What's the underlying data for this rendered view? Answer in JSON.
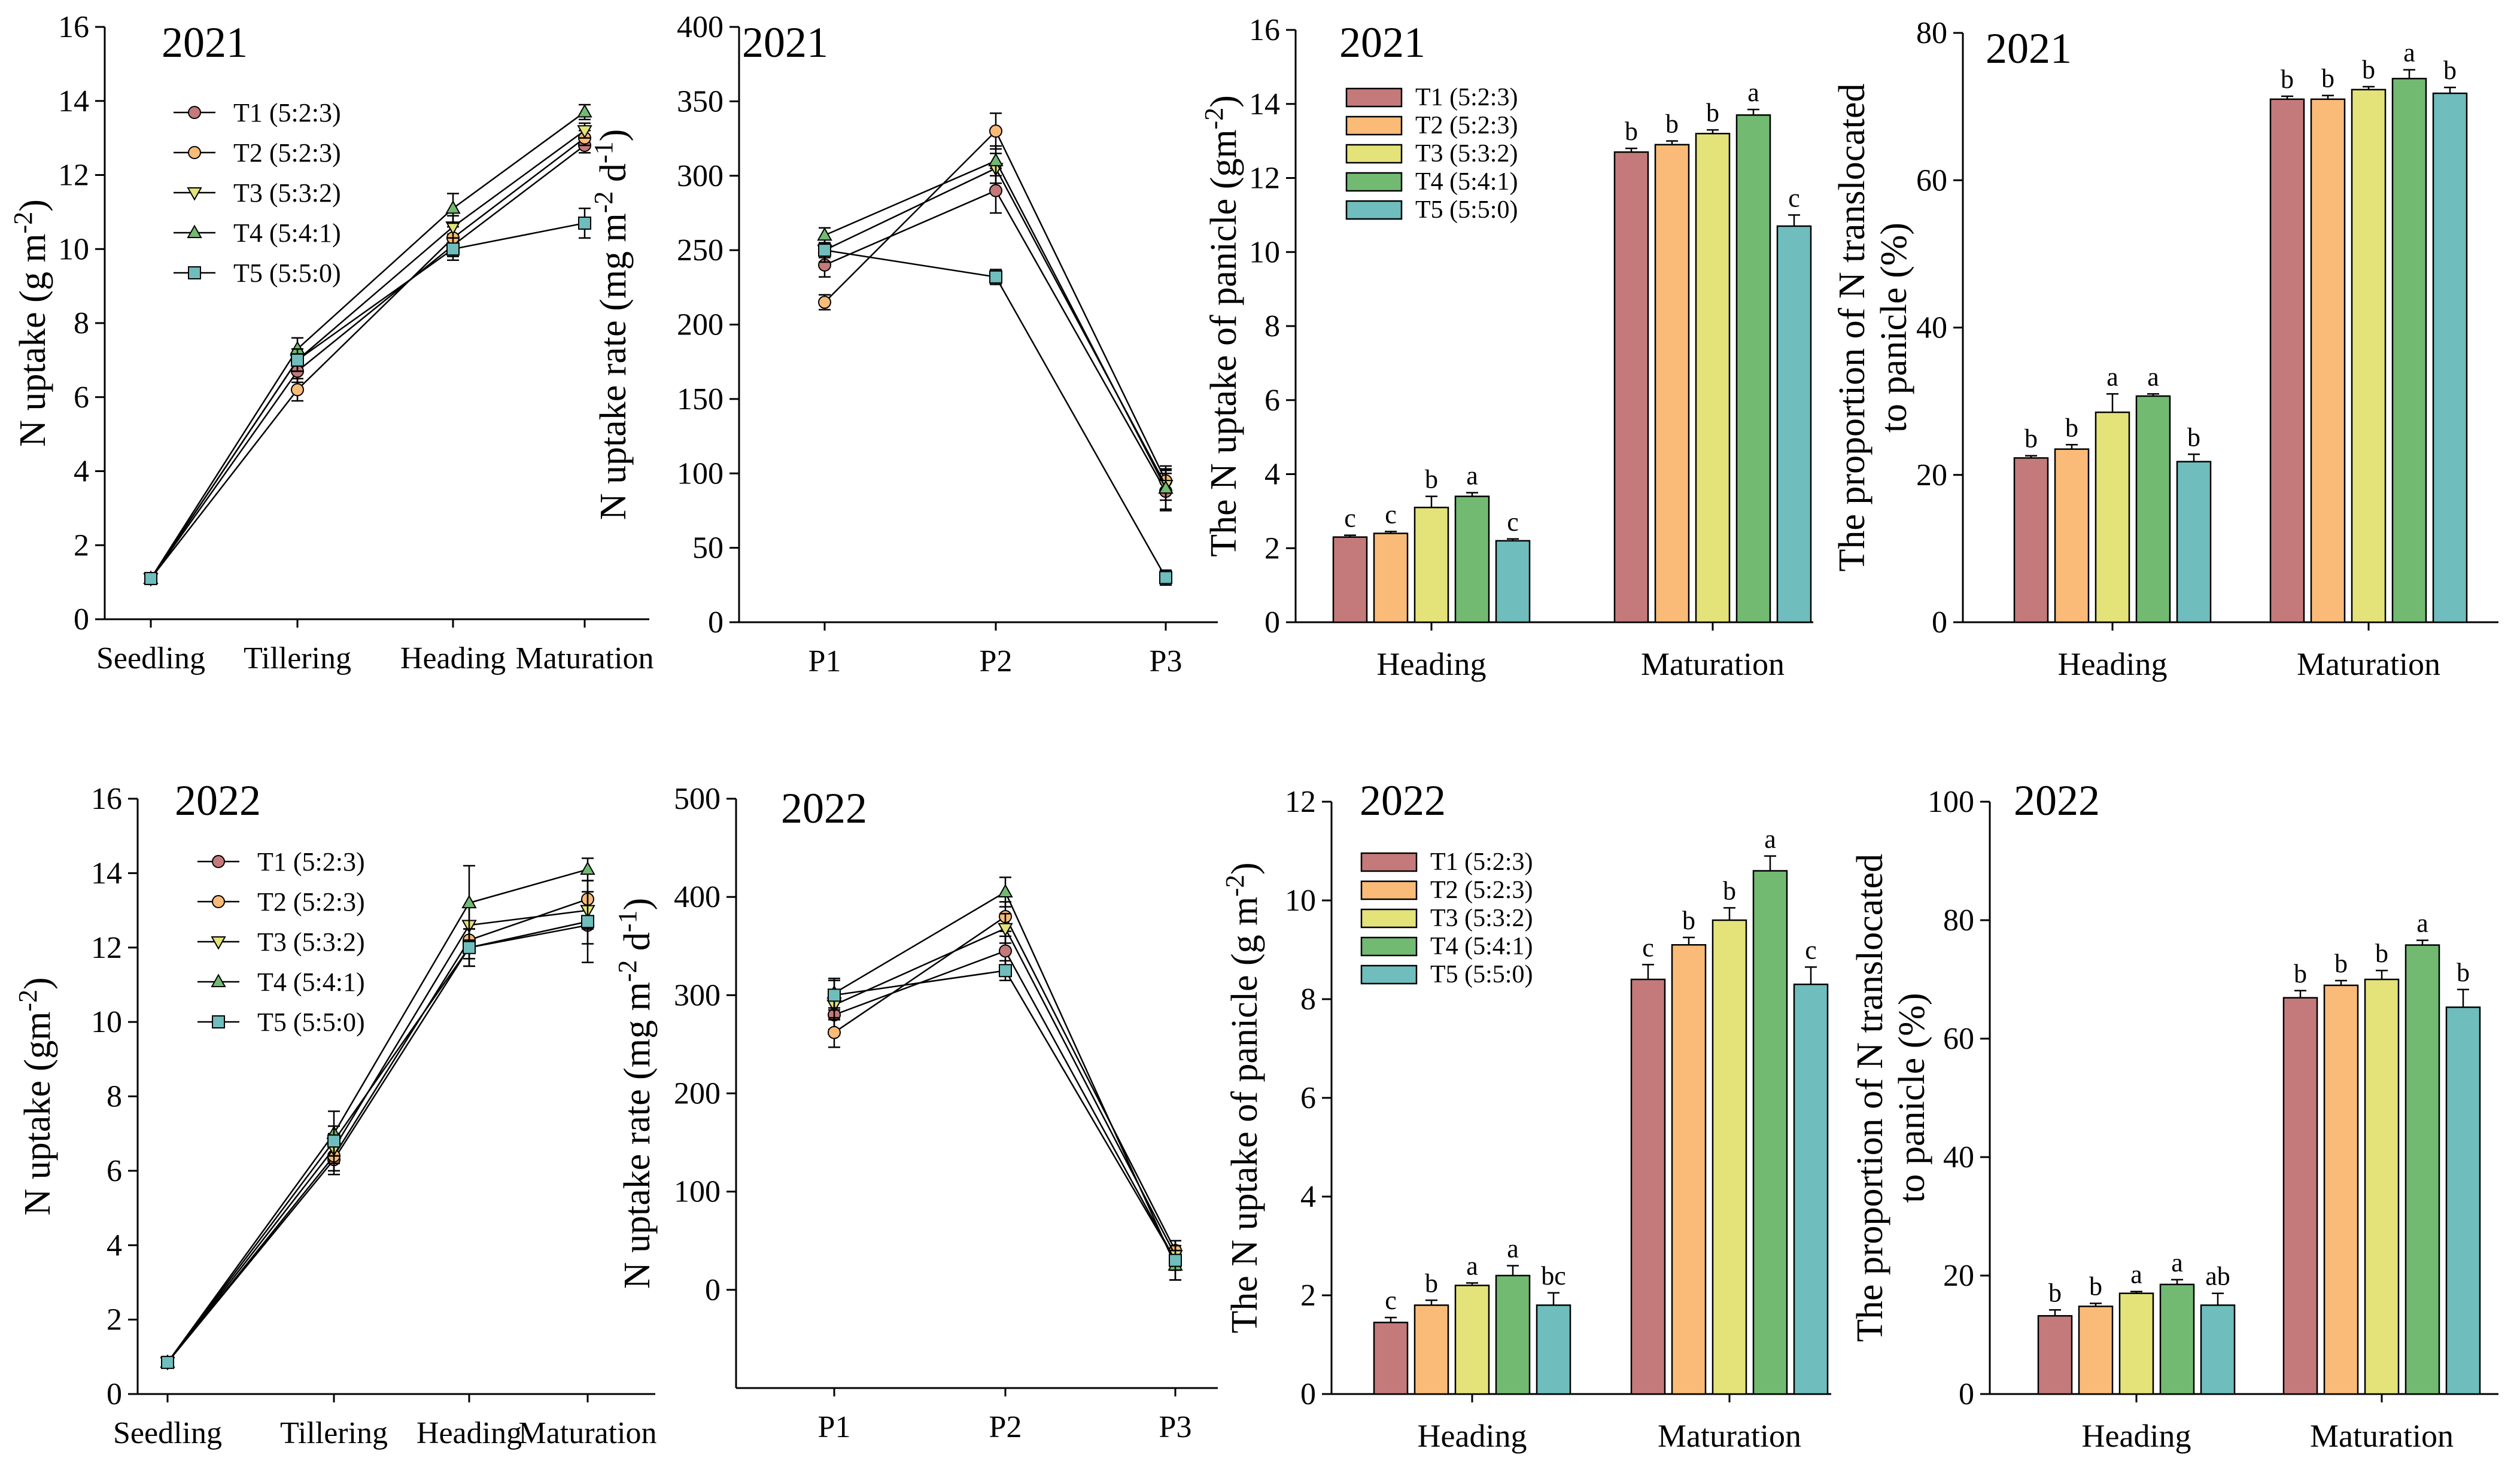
{
  "series_styles": [
    {
      "name": "T1 (5:2:3)",
      "color": "#c47a7a",
      "marker": "circle"
    },
    {
      "name": "T2 (5:2:3)",
      "color": "#f9bb77",
      "marker": "circle"
    },
    {
      "name": "T3 (5:3:2)",
      "color": "#e3e37a",
      "marker": "triangle-down"
    },
    {
      "name": "T4 (5:4:1)",
      "color": "#72ba72",
      "marker": "triangle-up"
    },
    {
      "name": "T5 (5:5:0)",
      "color": "#6fbdbd",
      "marker": "square"
    }
  ],
  "chart_data": [
    {
      "type": "line",
      "title": "2021",
      "ylabel": "N uptake (g m-2)",
      "xlabel": "",
      "categories": [
        "Seedling",
        "Tillering",
        "Heading",
        "Maturation"
      ],
      "ylim": [
        0,
        16
      ],
      "yticks": [
        0,
        2,
        4,
        6,
        8,
        10,
        12,
        14,
        16
      ],
      "legend": [
        "T1 (5:2:3)",
        "T2 (5:2:3)",
        "T3 (5:3:2)",
        "T4 (5:4:1)",
        "T5 (5:5:0)"
      ],
      "series": [
        {
          "name": "T1 (5:2:3)",
          "values": [
            1.1,
            6.7,
            10.1,
            12.8
          ],
          "errors": [
            0.1,
            0.3,
            0.3,
            0.2
          ]
        },
        {
          "name": "T2 (5:2:3)",
          "values": [
            1.1,
            6.2,
            10.3,
            13.0
          ],
          "errors": [
            0.1,
            0.3,
            0.3,
            0.2
          ]
        },
        {
          "name": "T3 (5:3:2)",
          "values": [
            1.1,
            7.0,
            10.6,
            13.2
          ],
          "errors": [
            0.1,
            0.3,
            0.3,
            0.2
          ]
        },
        {
          "name": "T4 (5:4:1)",
          "values": [
            1.1,
            7.3,
            11.1,
            13.7
          ],
          "errors": [
            0.1,
            0.3,
            0.4,
            0.2
          ]
        },
        {
          "name": "T5 (5:5:0)",
          "values": [
            1.1,
            7.0,
            10.0,
            10.7
          ],
          "errors": [
            0.1,
            0.3,
            0.3,
            0.4
          ]
        }
      ]
    },
    {
      "type": "line",
      "title": "2021",
      "ylabel": "N uptake rate (mg m-2 d-1)",
      "xlabel": "",
      "categories": [
        "P1",
        "P2",
        "P3"
      ],
      "ylim": [
        0,
        400
      ],
      "yticks": [
        0,
        50,
        100,
        150,
        200,
        250,
        300,
        350,
        400
      ],
      "series": [
        {
          "name": "T1 (5:2:3)",
          "values": [
            240,
            290,
            88
          ],
          "errors": [
            8,
            15,
            12
          ]
        },
        {
          "name": "T2 (5:2:3)",
          "values": [
            215,
            330,
            95
          ],
          "errors": [
            5,
            12,
            8
          ]
        },
        {
          "name": "T3 (5:3:2)",
          "values": [
            250,
            305,
            92
          ],
          "errors": [
            8,
            10,
            10
          ]
        },
        {
          "name": "T4 (5:4:1)",
          "values": [
            260,
            310,
            90
          ],
          "errors": [
            5,
            10,
            15
          ]
        },
        {
          "name": "T5 (5:5:0)",
          "values": [
            250,
            232,
            30
          ],
          "errors": [
            5,
            5,
            5
          ]
        }
      ]
    },
    {
      "type": "bar",
      "title": "2021",
      "ylabel": "The N uptake of panicle (gm-2)",
      "xlabel": "",
      "categories": [
        "Heading",
        "Maturation"
      ],
      "ylim": [
        0,
        16
      ],
      "yticks": [
        0,
        2,
        4,
        6,
        8,
        10,
        12,
        14,
        16
      ],
      "legend": [
        "T1 (5:2:3)",
        "T2 (5:2:3)",
        "T3 (5:3:2)",
        "T4 (5:4:1)",
        "T5 (5:5:0)"
      ],
      "series": [
        {
          "name": "T1 (5:2:3)",
          "values": [
            2.3,
            12.7
          ],
          "errors": [
            0.05,
            0.1
          ],
          "labels": [
            "c",
            "b"
          ]
        },
        {
          "name": "T2 (5:2:3)",
          "values": [
            2.4,
            12.9
          ],
          "errors": [
            0.05,
            0.1
          ],
          "labels": [
            "c",
            "b"
          ]
        },
        {
          "name": "T3 (5:3:2)",
          "values": [
            3.1,
            13.2
          ],
          "errors": [
            0.3,
            0.1
          ],
          "labels": [
            "b",
            "b"
          ]
        },
        {
          "name": "T4 (5:4:1)",
          "values": [
            3.4,
            13.7
          ],
          "errors": [
            0.1,
            0.15
          ],
          "labels": [
            "a",
            "a"
          ]
        },
        {
          "name": "T5 (5:5:0)",
          "values": [
            2.2,
            10.7
          ],
          "errors": [
            0.05,
            0.3
          ],
          "labels": [
            "c",
            "c"
          ]
        }
      ]
    },
    {
      "type": "bar",
      "title": "2021",
      "ylabel": "The proportion of N translocated to panicle (%)",
      "xlabel": "",
      "categories": [
        "Heading",
        "Maturation"
      ],
      "ylim": [
        0,
        80
      ],
      "yticks": [
        0,
        20,
        40,
        60,
        80
      ],
      "series": [
        {
          "name": "T1 (5:2:3)",
          "values": [
            22.3,
            71.0
          ],
          "errors": [
            0.3,
            0.4
          ],
          "labels": [
            "b",
            "b"
          ]
        },
        {
          "name": "T2 (5:2:3)",
          "values": [
            23.5,
            71.0
          ],
          "errors": [
            0.6,
            0.5
          ],
          "labels": [
            "b",
            "b"
          ]
        },
        {
          "name": "T3 (5:3:2)",
          "values": [
            28.5,
            72.3
          ],
          "errors": [
            2.5,
            0.4
          ],
          "labels": [
            "a",
            "b"
          ]
        },
        {
          "name": "T4 (5:4:1)",
          "values": [
            30.7,
            73.8
          ],
          "errors": [
            0.3,
            1.2
          ],
          "labels": [
            "a",
            "a"
          ]
        },
        {
          "name": "T5 (5:5:0)",
          "values": [
            21.8,
            71.8
          ],
          "errors": [
            1.0,
            0.8
          ],
          "labels": [
            "b",
            "b"
          ]
        }
      ]
    },
    {
      "type": "line",
      "title": "2022",
      "ylabel": "N uptake (gm-2)",
      "xlabel": "",
      "categories": [
        "Seedling",
        "Tillering",
        "Heading",
        "Maturation"
      ],
      "ylim": [
        0,
        16
      ],
      "yticks": [
        0,
        2,
        4,
        6,
        8,
        10,
        12,
        14,
        16
      ],
      "legend": [
        "T1 (5:2:3)",
        "T2 (5:2:3)",
        "T3 (5:3:2)",
        "T4 (5:4:1)",
        "T5 (5:5:0)"
      ],
      "series": [
        {
          "name": "T1 (5:2:3)",
          "values": [
            0.85,
            6.3,
            12.0,
            12.6
          ],
          "errors": [
            0.1,
            0.4,
            0.5,
            0.5
          ]
        },
        {
          "name": "T2 (5:2:3)",
          "values": [
            0.85,
            6.4,
            12.2,
            13.3
          ],
          "errors": [
            0.1,
            0.4,
            0.5,
            0.5
          ]
        },
        {
          "name": "T3 (5:3:2)",
          "values": [
            0.85,
            6.6,
            12.6,
            13.0
          ],
          "errors": [
            0.1,
            0.4,
            0.5,
            0.5
          ]
        },
        {
          "name": "T4 (5:4:1)",
          "values": [
            0.85,
            7.0,
            13.2,
            14.1
          ],
          "errors": [
            0.1,
            0.6,
            1.0,
            0.3
          ]
        },
        {
          "name": "T5 (5:5:0)",
          "values": [
            0.85,
            6.8,
            12.0,
            12.7
          ],
          "errors": [
            0.1,
            0.4,
            0.5,
            1.1
          ]
        }
      ]
    },
    {
      "type": "line",
      "title": "2022",
      "ylabel": "N uptake rate (mg m-2 d-1)",
      "xlabel": "",
      "categories": [
        "P1",
        "P2",
        "P3"
      ],
      "ylim": [
        -100,
        500
      ],
      "yticks": [
        0,
        100,
        200,
        300,
        400,
        500
      ],
      "series": [
        {
          "name": "T1 (5:2:3)",
          "values": [
            280,
            345,
            30
          ],
          "errors": [
            15,
            15,
            10
          ]
        },
        {
          "name": "T2 (5:2:3)",
          "values": [
            262,
            380,
            40
          ],
          "errors": [
            15,
            15,
            10
          ]
        },
        {
          "name": "T3 (5:3:2)",
          "values": [
            290,
            368,
            35
          ],
          "errors": [
            15,
            15,
            10
          ]
        },
        {
          "name": "T4 (5:4:1)",
          "values": [
            302,
            405,
            25
          ],
          "errors": [
            15,
            15,
            15
          ]
        },
        {
          "name": "T5 (5:5:0)",
          "values": [
            300,
            325,
            30
          ],
          "errors": [
            15,
            10,
            20
          ]
        }
      ]
    },
    {
      "type": "bar",
      "title": "2022",
      "ylabel": "The N uptake of panicle (g m-2)",
      "xlabel": "",
      "categories": [
        "Heading",
        "Maturation"
      ],
      "ylim": [
        0,
        12
      ],
      "yticks": [
        0,
        2,
        4,
        6,
        8,
        10,
        12
      ],
      "legend": [
        "T1 (5:2:3)",
        "T2 (5:2:3)",
        "T3 (5:3:2)",
        "T4 (5:4:1)",
        "T5 (5:5:0)"
      ],
      "series": [
        {
          "name": "T1 (5:2:3)",
          "values": [
            1.45,
            8.4
          ],
          "errors": [
            0.1,
            0.3
          ],
          "labels": [
            "c",
            "c"
          ]
        },
        {
          "name": "T2 (5:2:3)",
          "values": [
            1.8,
            9.1
          ],
          "errors": [
            0.1,
            0.15
          ],
          "labels": [
            "b",
            "b"
          ]
        },
        {
          "name": "T3 (5:3:2)",
          "values": [
            2.2,
            9.6
          ],
          "errors": [
            0.05,
            0.25
          ],
          "labels": [
            "a",
            "b"
          ]
        },
        {
          "name": "T4 (5:4:1)",
          "values": [
            2.4,
            10.6
          ],
          "errors": [
            0.2,
            0.3
          ],
          "labels": [
            "a",
            "a"
          ]
        },
        {
          "name": "T5 (5:5:0)",
          "values": [
            1.8,
            8.3
          ],
          "errors": [
            0.25,
            0.35
          ],
          "labels": [
            "bc",
            "c"
          ]
        }
      ]
    },
    {
      "type": "bar",
      "title": "2022",
      "ylabel": "The proportion of N translocated to panicle (%)",
      "xlabel": "",
      "categories": [
        "Heading",
        "Maturation"
      ],
      "ylim": [
        0,
        100
      ],
      "yticks": [
        0,
        20,
        40,
        60,
        80,
        100
      ],
      "series": [
        {
          "name": "T1 (5:2:3)",
          "values": [
            13.2,
            66.9
          ],
          "errors": [
            1.0,
            1.2
          ],
          "labels": [
            "b",
            "b"
          ]
        },
        {
          "name": "T2 (5:2:3)",
          "values": [
            14.8,
            69.0
          ],
          "errors": [
            0.5,
            0.8
          ],
          "labels": [
            "b",
            "b"
          ]
        },
        {
          "name": "T3 (5:3:2)",
          "values": [
            17.0,
            70.0
          ],
          "errors": [
            0.3,
            1.5
          ],
          "labels": [
            "a",
            "b"
          ]
        },
        {
          "name": "T4 (5:4:1)",
          "values": [
            18.5,
            75.8
          ],
          "errors": [
            0.8,
            0.8
          ],
          "labels": [
            "a",
            "a"
          ]
        },
        {
          "name": "T5 (5:5:0)",
          "values": [
            15.0,
            65.3
          ],
          "errors": [
            2.0,
            3.0
          ],
          "labels": [
            "ab",
            "b"
          ]
        }
      ]
    }
  ]
}
